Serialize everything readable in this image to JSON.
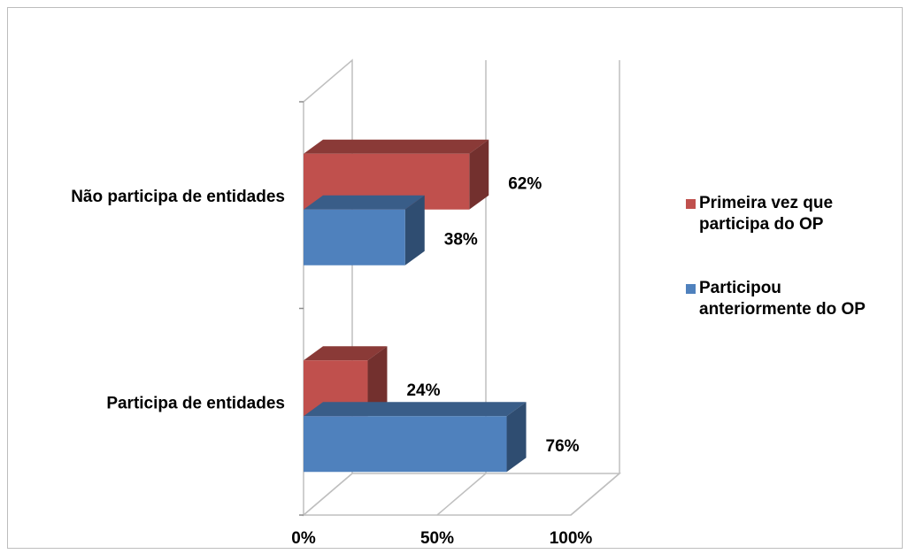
{
  "chart_data": {
    "type": "bar",
    "orientation": "horizontal",
    "stacking": "none",
    "three_d": true,
    "categories": [
      "Não participa de entidades",
      "Participa de entidades"
    ],
    "series": [
      {
        "name": "Primeira vez que participa do OP",
        "color": "#c0504d",
        "values": [
          62,
          24
        ]
      },
      {
        "name": "Participou anteriormente do OP",
        "color": "#4f81bd",
        "values": [
          38,
          76
        ]
      }
    ],
    "data_labels": [
      [
        "62%",
        "24%"
      ],
      [
        "38%",
        "76%"
      ]
    ],
    "xlim": [
      0,
      100
    ],
    "x_ticks": [
      "0%",
      "50%",
      "100%"
    ],
    "x_tick_values": [
      0,
      50,
      100
    ],
    "xlabel": "",
    "ylabel": "",
    "title": "",
    "grid": true,
    "legend_position": "right"
  }
}
